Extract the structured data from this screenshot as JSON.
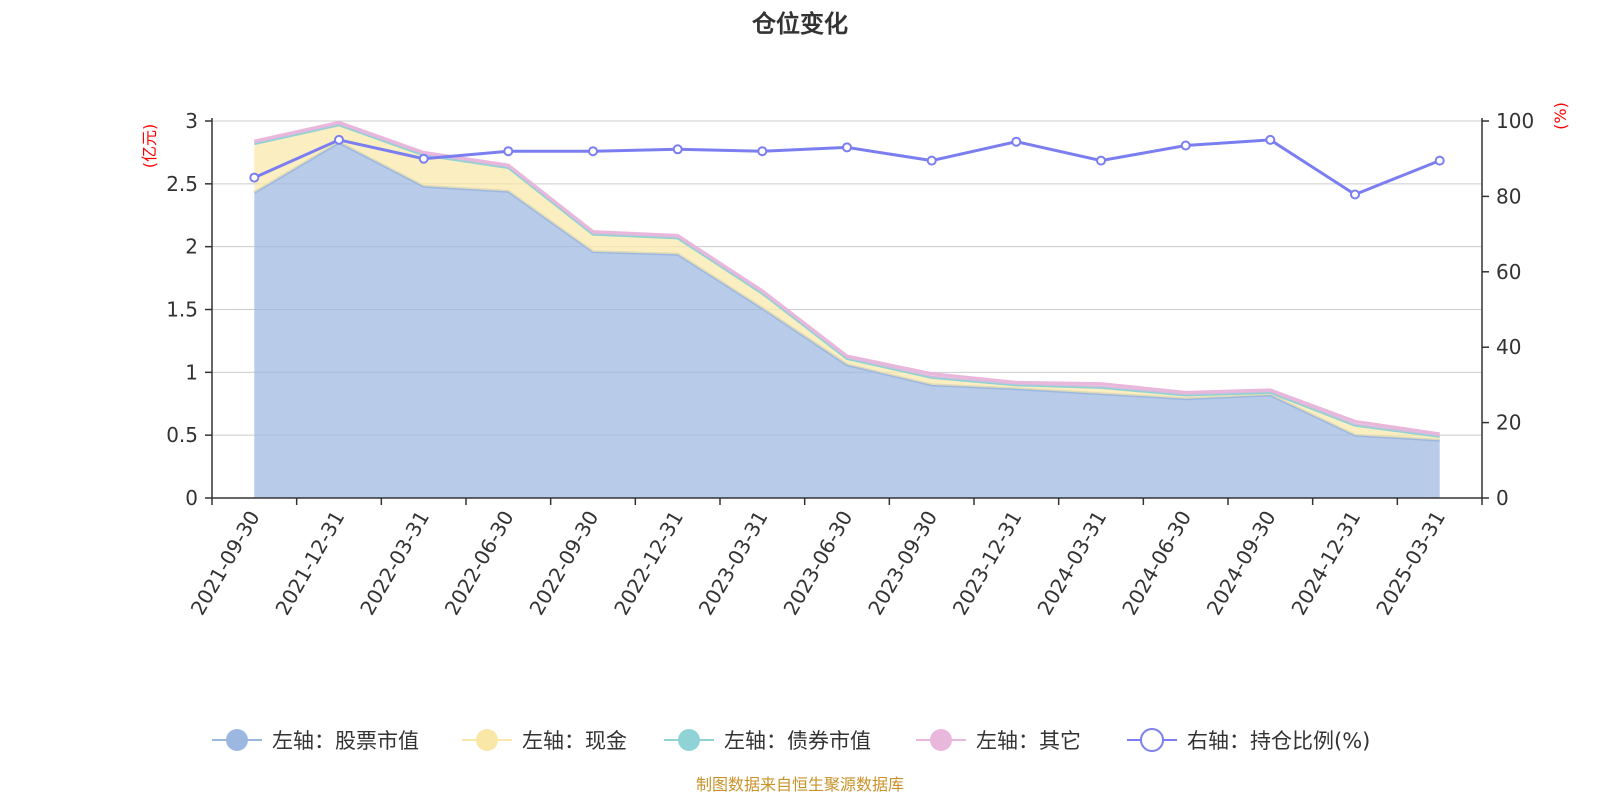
{
  "chart_data": {
    "type": "area",
    "title": "仓位变化",
    "categories": [
      "2021-09-30",
      "2021-12-31",
      "2022-03-31",
      "2022-06-30",
      "2022-09-30",
      "2022-12-31",
      "2023-03-31",
      "2023-06-30",
      "2023-09-30",
      "2023-12-31",
      "2024-03-31",
      "2024-06-30",
      "2024-09-30",
      "2024-12-31",
      "2025-03-31"
    ],
    "left_axis": {
      "unit": "(亿元)",
      "ylim": [
        0,
        3
      ],
      "ticks": [
        "0",
        "0.5",
        "1",
        "1.5",
        "2",
        "2.5",
        "3"
      ]
    },
    "right_axis": {
      "unit": "(%)",
      "ylim": [
        0,
        100
      ],
      "ticks": [
        "0",
        "20",
        "40",
        "60",
        "80",
        "100"
      ]
    },
    "grid": true,
    "legend_position": "bottom",
    "series": [
      {
        "name": "左轴：股票市值",
        "type": "area",
        "axis": "left",
        "stacked": true,
        "color": "#9db8e0",
        "values": [
          2.43,
          2.83,
          2.48,
          2.44,
          1.96,
          1.94,
          1.51,
          1.06,
          0.9,
          0.87,
          0.83,
          0.79,
          0.82,
          0.5,
          0.46
        ]
      },
      {
        "name": "左轴：现金",
        "type": "area",
        "axis": "left",
        "stacked": true,
        "color": "#f9e7a8",
        "values": [
          0.39,
          0.14,
          0.25,
          0.19,
          0.14,
          0.13,
          0.12,
          0.05,
          0.06,
          0.03,
          0.05,
          0.03,
          0.02,
          0.08,
          0.03
        ]
      },
      {
        "name": "左轴：债券市值",
        "type": "area",
        "axis": "left",
        "stacked": true,
        "color": "#8fd3d6",
        "values": [
          0,
          0,
          0,
          0,
          0,
          0,
          0,
          0,
          0,
          0,
          0,
          0,
          0,
          0,
          0
        ]
      },
      {
        "name": "左轴：其它",
        "type": "area",
        "axis": "left",
        "stacked": true,
        "color": "#e9b6dc",
        "values": [
          0.02,
          0.02,
          0.02,
          0.02,
          0.02,
          0.02,
          0.02,
          0.02,
          0.03,
          0.02,
          0.03,
          0.02,
          0.02,
          0.03,
          0.02
        ]
      },
      {
        "name": "右轴：持仓比例(%)",
        "type": "line",
        "axis": "right",
        "color": "#7b7ef0",
        "values": [
          85,
          95,
          90,
          92,
          92,
          92.5,
          92,
          93,
          89.5,
          94.5,
          89.5,
          93.5,
          95,
          80.5,
          89.5
        ]
      }
    ],
    "source": "制图数据来自恒生聚源数据库"
  }
}
